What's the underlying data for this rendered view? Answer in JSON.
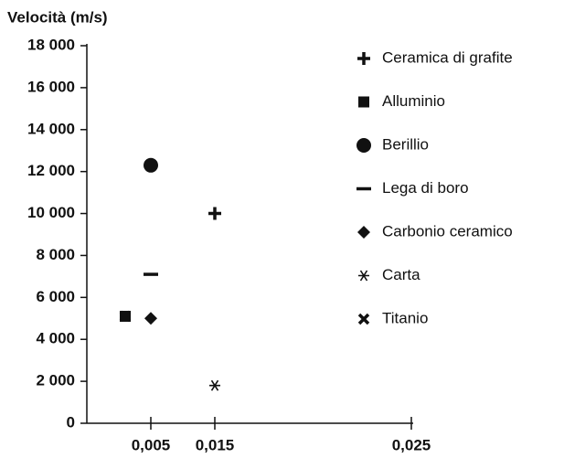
{
  "chart_data": {
    "type": "scatter",
    "y_label": "Velocità (m/s)",
    "xlim": [
      0,
      0.025
    ],
    "xticks": [
      {
        "value": 0.005,
        "label": "0,005"
      },
      {
        "value": 0.015,
        "label": "0,015"
      },
      {
        "value": 0.025,
        "label": "0,025"
      }
    ],
    "ylim": [
      0,
      18000
    ],
    "yticks": [
      0,
      {
        "value": 2000,
        "label": "2 000"
      },
      {
        "value": 4000,
        "label": "4 000"
      },
      {
        "value": 6000,
        "label": "6 000"
      },
      {
        "value": 8000,
        "label": "8 000"
      },
      {
        "value": 10000,
        "label": "10 000"
      },
      {
        "value": 12000,
        "label": "12 000"
      },
      {
        "value": 14000,
        "label": "14 000"
      },
      {
        "value": 16000,
        "label": "16 000"
      },
      {
        "value": 18000,
        "label": "18 000"
      }
    ],
    "legend": "right",
    "series": [
      {
        "name": "Ceramica di grafite",
        "marker": "plus",
        "color": "#111111",
        "x": [
          0.015
        ],
        "values": [
          10000
        ]
      },
      {
        "name": "Alluminio",
        "marker": "square",
        "color": "#111111",
        "x": [
          0.003
        ],
        "values": [
          5100
        ]
      },
      {
        "name": "Berillio",
        "marker": "circle",
        "color": "#111111",
        "x": [
          0.005
        ],
        "values": [
          12300
        ]
      },
      {
        "name": "Lega di boro",
        "marker": "dash",
        "color": "#111111",
        "x": [
          0.005
        ],
        "values": [
          7100
        ]
      },
      {
        "name": "Carbonio ceramico",
        "marker": "diamond",
        "color": "#111111",
        "x": [
          0.005
        ],
        "values": [
          5000
        ]
      },
      {
        "name": "Carta",
        "marker": "asterisk",
        "color": "#111111",
        "x": [
          0.015
        ],
        "values": [
          1800
        ]
      },
      {
        "name": "Titanio",
        "marker": "x",
        "color": "#111111",
        "x": [
          0.003
        ],
        "values": [
          5100
        ]
      }
    ]
  }
}
